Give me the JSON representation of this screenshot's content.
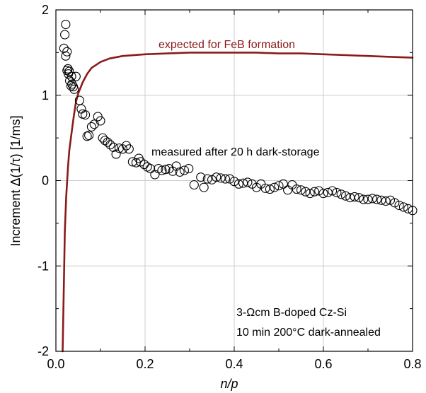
{
  "chart_data": {
    "type": "scatter",
    "title": "",
    "xlabel": "n/p",
    "ylabel": "Increment  Δ(1/τ) [1/ms]",
    "xlim": [
      0,
      0.8
    ],
    "ylim": [
      -2,
      2
    ],
    "x_ticks": [
      0,
      0.2,
      0.4,
      0.6,
      0.8
    ],
    "x_tick_labels": [
      "0.0",
      "0.2",
      "0.4",
      "0.6",
      "0.8"
    ],
    "y_ticks": [
      -2,
      -1,
      0,
      1,
      2
    ],
    "y_tick_labels": [
      "-2",
      "-1",
      "0",
      "1",
      "2"
    ],
    "grid": true,
    "colors": {
      "expected_curve": "#8b1a1a",
      "markers": "#000000",
      "grid": "#cccccc"
    },
    "annotations": {
      "expected_label": "expected for FeB formation",
      "measured_label": "measured after 20 h dark-storage",
      "sample_line1": "3-Ωcm B-doped Cz-Si",
      "sample_line2": "10 min 200°C dark-annealed"
    },
    "series": [
      {
        "kind": "scatter",
        "marker": "open-circle",
        "points": [
          [
            0.022,
            1.83
          ],
          [
            0.02,
            1.71
          ],
          [
            0.018,
            1.55
          ],
          [
            0.025,
            1.51
          ],
          [
            0.022,
            1.46
          ],
          [
            0.027,
            1.31
          ],
          [
            0.025,
            1.29
          ],
          [
            0.03,
            1.28
          ],
          [
            0.028,
            1.25
          ],
          [
            0.035,
            1.22
          ],
          [
            0.045,
            1.22
          ],
          [
            0.031,
            1.17
          ],
          [
            0.036,
            1.13
          ],
          [
            0.034,
            1.11
          ],
          [
            0.039,
            1.1
          ],
          [
            0.041,
            1.07
          ],
          [
            0.053,
            0.94
          ],
          [
            0.057,
            0.84
          ],
          [
            0.06,
            0.78
          ],
          [
            0.066,
            0.77
          ],
          [
            0.07,
            0.52
          ],
          [
            0.074,
            0.53
          ],
          [
            0.08,
            0.63
          ],
          [
            0.086,
            0.66
          ],
          [
            0.094,
            0.75
          ],
          [
            0.1,
            0.7
          ],
          [
            0.105,
            0.5
          ],
          [
            0.11,
            0.47
          ],
          [
            0.116,
            0.45
          ],
          [
            0.122,
            0.42
          ],
          [
            0.129,
            0.39
          ],
          [
            0.135,
            0.31
          ],
          [
            0.142,
            0.38
          ],
          [
            0.15,
            0.37
          ],
          [
            0.158,
            0.41
          ],
          [
            0.164,
            0.37
          ],
          [
            0.172,
            0.22
          ],
          [
            0.18,
            0.21
          ],
          [
            0.186,
            0.26
          ],
          [
            0.19,
            0.22
          ],
          [
            0.198,
            0.19
          ],
          [
            0.205,
            0.16
          ],
          [
            0.212,
            0.14
          ],
          [
            0.222,
            0.07
          ],
          [
            0.23,
            0.14
          ],
          [
            0.238,
            0.12
          ],
          [
            0.246,
            0.13
          ],
          [
            0.254,
            0.14
          ],
          [
            0.262,
            0.11
          ],
          [
            0.27,
            0.17
          ],
          [
            0.278,
            0.1
          ],
          [
            0.288,
            0.12
          ],
          [
            0.298,
            0.14
          ],
          [
            0.31,
            -0.05
          ],
          [
            0.325,
            0.04
          ],
          [
            0.332,
            -0.08
          ],
          [
            0.34,
            0.02
          ],
          [
            0.35,
            0.01
          ],
          [
            0.36,
            0.04
          ],
          [
            0.37,
            0.03
          ],
          [
            0.38,
            0.02
          ],
          [
            0.39,
            0.02
          ],
          [
            0.4,
            -0.01
          ],
          [
            0.41,
            -0.04
          ],
          [
            0.42,
            -0.03
          ],
          [
            0.43,
            -0.02
          ],
          [
            0.44,
            -0.04
          ],
          [
            0.45,
            -0.08
          ],
          [
            0.46,
            -0.04
          ],
          [
            0.47,
            -0.09
          ],
          [
            0.48,
            -0.1
          ],
          [
            0.49,
            -0.08
          ],
          [
            0.5,
            -0.06
          ],
          [
            0.51,
            -0.04
          ],
          [
            0.52,
            -0.11
          ],
          [
            0.53,
            -0.05
          ],
          [
            0.54,
            -0.1
          ],
          [
            0.55,
            -0.11
          ],
          [
            0.56,
            -0.13
          ],
          [
            0.57,
            -0.15
          ],
          [
            0.58,
            -0.13
          ],
          [
            0.59,
            -0.12
          ],
          [
            0.6,
            -0.15
          ],
          [
            0.61,
            -0.14
          ],
          [
            0.62,
            -0.12
          ],
          [
            0.63,
            -0.14
          ],
          [
            0.64,
            -0.16
          ],
          [
            0.65,
            -0.18
          ],
          [
            0.66,
            -0.2
          ],
          [
            0.67,
            -0.19
          ],
          [
            0.68,
            -0.2
          ],
          [
            0.69,
            -0.22
          ],
          [
            0.7,
            -0.22
          ],
          [
            0.71,
            -0.21
          ],
          [
            0.72,
            -0.22
          ],
          [
            0.73,
            -0.23
          ],
          [
            0.74,
            -0.24
          ],
          [
            0.75,
            -0.23
          ],
          [
            0.76,
            -0.26
          ],
          [
            0.77,
            -0.29
          ],
          [
            0.78,
            -0.31
          ],
          [
            0.79,
            -0.33
          ],
          [
            0.8,
            -0.35
          ]
        ]
      },
      {
        "kind": "line",
        "points": [
          [
            0.015,
            -2.0
          ],
          [
            0.018,
            -1.2
          ],
          [
            0.02,
            -0.6
          ],
          [
            0.023,
            -0.2
          ],
          [
            0.027,
            0.15
          ],
          [
            0.03,
            0.35
          ],
          [
            0.035,
            0.55
          ],
          [
            0.04,
            0.75
          ],
          [
            0.045,
            0.92
          ],
          [
            0.05,
            1.02
          ],
          [
            0.06,
            1.15
          ],
          [
            0.07,
            1.25
          ],
          [
            0.08,
            1.32
          ],
          [
            0.1,
            1.39
          ],
          [
            0.12,
            1.43
          ],
          [
            0.15,
            1.46
          ],
          [
            0.2,
            1.48
          ],
          [
            0.25,
            1.49
          ],
          [
            0.3,
            1.5
          ],
          [
            0.35,
            1.5
          ],
          [
            0.4,
            1.5
          ],
          [
            0.45,
            1.5
          ],
          [
            0.5,
            1.49
          ],
          [
            0.55,
            1.49
          ],
          [
            0.6,
            1.48
          ],
          [
            0.65,
            1.47
          ],
          [
            0.7,
            1.46
          ],
          [
            0.75,
            1.45
          ],
          [
            0.8,
            1.44
          ]
        ]
      }
    ]
  }
}
